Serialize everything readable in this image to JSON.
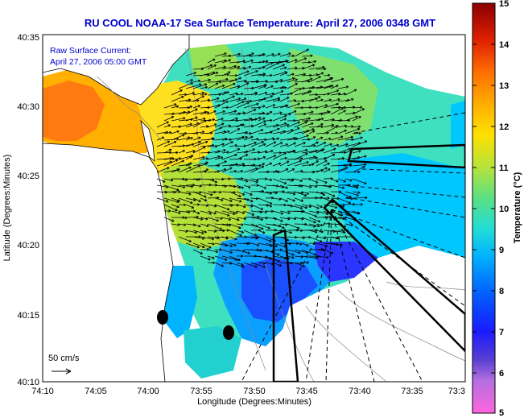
{
  "title": "RU COOL  NOAA-17  Sea Surface Temperature:  April 27, 2006 0348 GMT",
  "current_label": [
    "Raw Surface Current:",
    "April 27, 2006 05:00 GMT"
  ],
  "scale_label": "50 cm/s",
  "xlabel": "Longitude (Degrees:Minutes)",
  "ylabel": "Latitude (Degrees:Minutes)",
  "x_ticks": [
    "74:10",
    "74:05",
    "74:00",
    "73:55",
    "73:50",
    "73:45",
    "73:40",
    "73:35",
    "73:3"
  ],
  "y_ticks": [
    "40:35",
    "40:30",
    "40:25",
    "40:20",
    "40:15",
    "40:10"
  ],
  "colorbar": {
    "label": "Temperature (°C)",
    "ticks": [
      "15",
      "14",
      "13",
      "12",
      "11",
      "10",
      "9",
      "8",
      "7",
      "6",
      "5"
    ],
    "range": [
      5,
      15
    ]
  },
  "colors": {
    "title": "#0000cc",
    "land": "#ffffff",
    "border": "#000000"
  }
}
